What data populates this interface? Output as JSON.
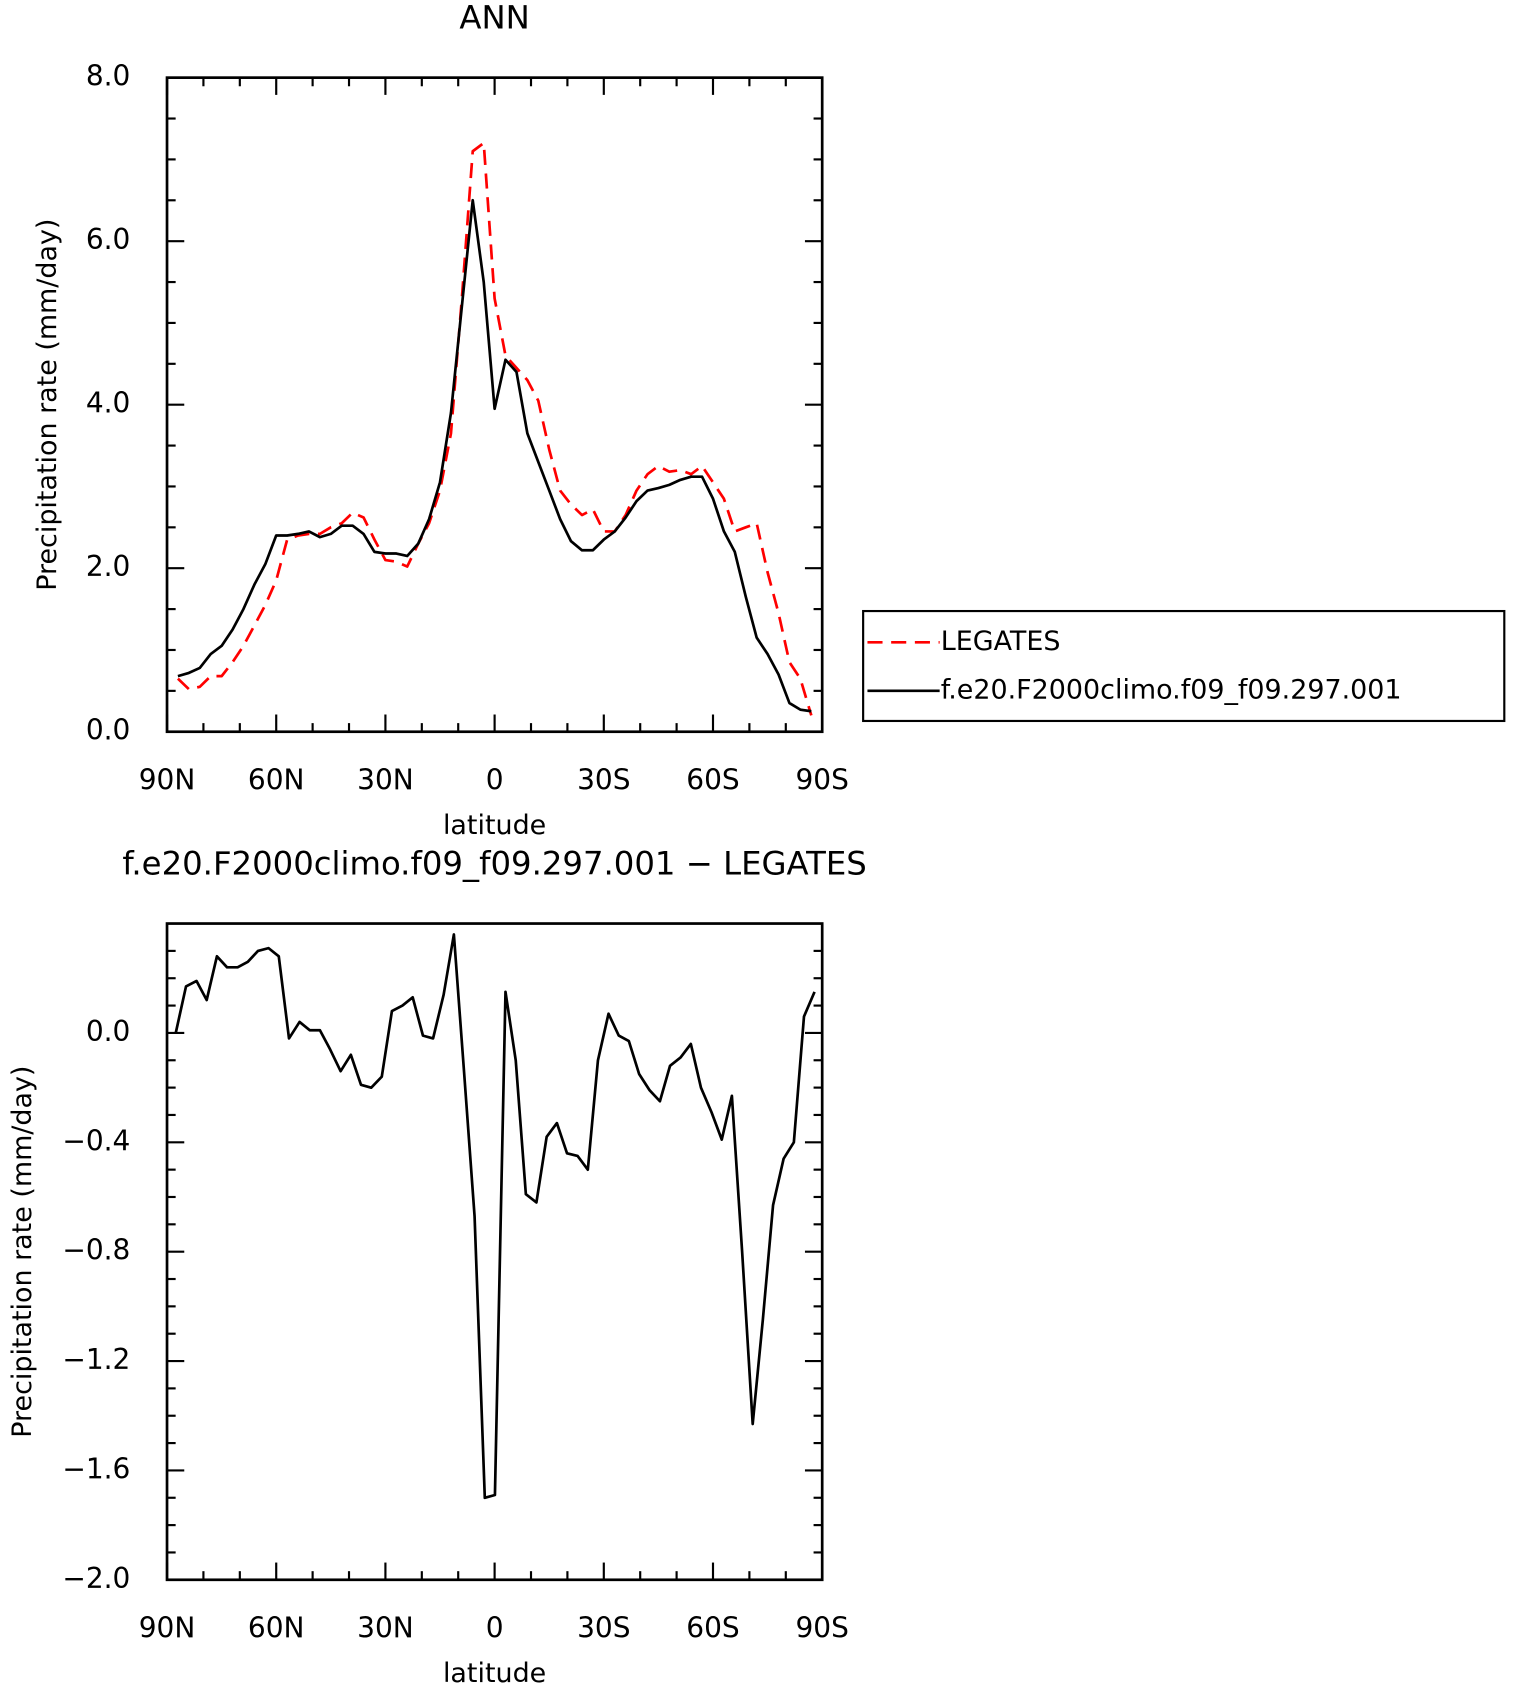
{
  "chart_data": [
    {
      "type": "line",
      "title": "ANN",
      "xlabel": "latitude",
      "ylabel": "Precipitation rate (mm/day)",
      "x": [
        87,
        84,
        81,
        78,
        75,
        72,
        69,
        66,
        63,
        60,
        57,
        54,
        51,
        48,
        45,
        42,
        39,
        36,
        33,
        30,
        27,
        24,
        21,
        18,
        15,
        12,
        9,
        6,
        3,
        0,
        -3,
        -6,
        -9,
        -12,
        -15,
        -18,
        -21,
        -24,
        -27,
        -30,
        -33,
        -36,
        -39,
        -42,
        -45,
        -48,
        -51,
        -54,
        -57,
        -60,
        -63,
        -66,
        -69,
        -72,
        -75,
        -78,
        -81,
        -84,
        -87
      ],
      "series": [
        {
          "name": "LEGATES",
          "color": "#ff0000",
          "dashed": true,
          "values": [
            0.65,
            0.52,
            0.55,
            0.68,
            0.68,
            0.85,
            1.05,
            1.3,
            1.55,
            1.85,
            2.35,
            2.4,
            2.42,
            2.42,
            2.5,
            2.55,
            2.68,
            2.62,
            2.35,
            2.1,
            2.08,
            2.02,
            2.3,
            2.55,
            2.95,
            3.65,
            5.3,
            7.1,
            7.2,
            5.3,
            4.6,
            4.45,
            4.3,
            4.05,
            3.45,
            2.95,
            2.78,
            2.65,
            2.72,
            2.45,
            2.45,
            2.65,
            2.95,
            3.15,
            3.25,
            3.18,
            3.2,
            3.15,
            3.25,
            3.05,
            2.85,
            2.45,
            2.5,
            2.55,
            1.95,
            1.45,
            0.85,
            0.65,
            0.2
          ]
        },
        {
          "name": "f.e20.F2000climo.f09_f09.297.001",
          "color": "#000000",
          "dashed": false,
          "values": [
            0.68,
            0.72,
            0.78,
            0.95,
            1.05,
            1.25,
            1.5,
            1.8,
            2.05,
            2.4,
            2.4,
            2.42,
            2.45,
            2.38,
            2.42,
            2.52,
            2.52,
            2.42,
            2.2,
            2.18,
            2.18,
            2.15,
            2.3,
            2.6,
            3.05,
            3.9,
            5.2,
            6.5,
            5.5,
            3.95,
            4.55,
            4.4,
            3.65,
            3.3,
            2.95,
            2.6,
            2.33,
            2.22,
            2.22,
            2.35,
            2.45,
            2.62,
            2.82,
            2.95,
            2.98,
            3.02,
            3.08,
            3.12,
            3.12,
            2.85,
            2.45,
            2.2,
            1.65,
            1.15,
            0.95,
            0.7,
            0.35,
            0.27,
            0.25
          ]
        }
      ],
      "xlim": [
        90,
        -90
      ],
      "xticks": [
        {
          "value": 90,
          "label": "90N"
        },
        {
          "value": 60,
          "label": "60N"
        },
        {
          "value": 30,
          "label": "30N"
        },
        0,
        {
          "value": -30,
          "label": "30S"
        },
        {
          "value": -60,
          "label": "60S"
        },
        {
          "value": -90,
          "label": "90S"
        }
      ],
      "xminorticks": [
        80,
        70,
        50,
        40,
        20,
        10,
        -10,
        -20,
        -40,
        -50,
        -70,
        -80
      ],
      "ylim": [
        0,
        8
      ],
      "yticks": [
        {
          "value": 0,
          "label": "0.0"
        },
        {
          "value": 2,
          "label": "2.0"
        },
        {
          "value": 4,
          "label": "4.0"
        },
        {
          "value": 6,
          "label": "6.0"
        },
        {
          "value": 8,
          "label": "8.0"
        }
      ],
      "yminorticks": [
        0.5,
        1.0,
        1.5,
        2.5,
        3.0,
        3.5,
        4.5,
        5.0,
        5.5,
        6.5,
        7.0,
        7.5
      ],
      "top_ticks": true,
      "legend": "right"
    },
    {
      "type": "line",
      "title": "f.e20.F2000climo.f09_f09.297.001 − LEGATES",
      "xlabel": "latitude",
      "ylabel": "Precipitation rate (mm/day)",
      "x": [
        87.6,
        84.8,
        81.9,
        79.1,
        76.3,
        73.5,
        70.6,
        67.8,
        65.0,
        62.1,
        59.3,
        56.5,
        53.6,
        50.8,
        48.0,
        45.2,
        42.3,
        39.5,
        36.7,
        33.9,
        31.0,
        28.2,
        25.3,
        22.5,
        19.7,
        16.9,
        14.0,
        11.2,
        8.4,
        5.5,
        2.7,
        -0.1,
        -3.0,
        -5.8,
        -8.6,
        -11.5,
        -14.3,
        -17.1,
        -19.9,
        -22.8,
        -25.6,
        -28.4,
        -31.3,
        -34.1,
        -36.9,
        -39.7,
        -42.6,
        -45.4,
        -48.2,
        -51.1,
        -53.9,
        -56.7,
        -59.6,
        -62.4,
        -65.2,
        -68.0,
        -70.9,
        -73.7,
        -76.5,
        -79.4,
        -82.2,
        -85.0,
        -87.9
      ],
      "values": [
        0.0,
        0.17,
        0.19,
        0.12,
        0.28,
        0.24,
        0.24,
        0.26,
        0.3,
        0.31,
        0.28,
        -0.02,
        0.04,
        0.01,
        0.01,
        -0.06,
        -0.14,
        -0.08,
        -0.19,
        -0.2,
        -0.16,
        0.08,
        0.1,
        0.13,
        -0.01,
        -0.02,
        0.14,
        0.36,
        -0.14,
        -0.67,
        -1.7,
        -1.69,
        0.15,
        -0.1,
        -0.59,
        -0.62,
        -0.38,
        -0.33,
        -0.44,
        -0.45,
        -0.5,
        -0.1,
        0.07,
        -0.01,
        -0.03,
        -0.15,
        -0.21,
        -0.25,
        -0.12,
        -0.09,
        -0.04,
        -0.2,
        -0.29,
        -0.39,
        -0.23,
        -0.8,
        -1.43,
        -1.05,
        -0.63,
        -0.46,
        -0.4,
        0.06,
        0.15
      ],
      "color": "#000000",
      "xlim": [
        90,
        -90
      ],
      "xticks": [
        {
          "value": 90,
          "label": "90N"
        },
        {
          "value": 60,
          "label": "60N"
        },
        {
          "value": 30,
          "label": "30N"
        },
        0,
        {
          "value": -30,
          "label": "30S"
        },
        {
          "value": -60,
          "label": "60S"
        },
        {
          "value": -90,
          "label": "90S"
        }
      ],
      "xminorticks": [
        80,
        70,
        50,
        40,
        20,
        10,
        -10,
        -20,
        -40,
        -50,
        -70,
        -80
      ],
      "ylim": [
        -2.0,
        0.4
      ],
      "yticks": [
        {
          "value": 0,
          "label": "0.0"
        },
        {
          "value": -0.4,
          "label": "−0.4"
        },
        {
          "value": -0.8,
          "label": "−0.8"
        },
        {
          "value": -1.2,
          "label": "−1.2"
        },
        {
          "value": -1.6,
          "label": "−1.6"
        },
        {
          "value": -2.0,
          "label": "−2.0"
        }
      ],
      "yminorticks": [
        0.3,
        0.2,
        0.1,
        -0.1,
        -0.2,
        -0.3,
        -0.5,
        -0.6,
        -0.7,
        -0.9,
        -1.0,
        -1.1,
        -1.3,
        -1.4,
        -1.5,
        -1.7,
        -1.8,
        -1.9
      ],
      "top_ticks": false
    }
  ]
}
